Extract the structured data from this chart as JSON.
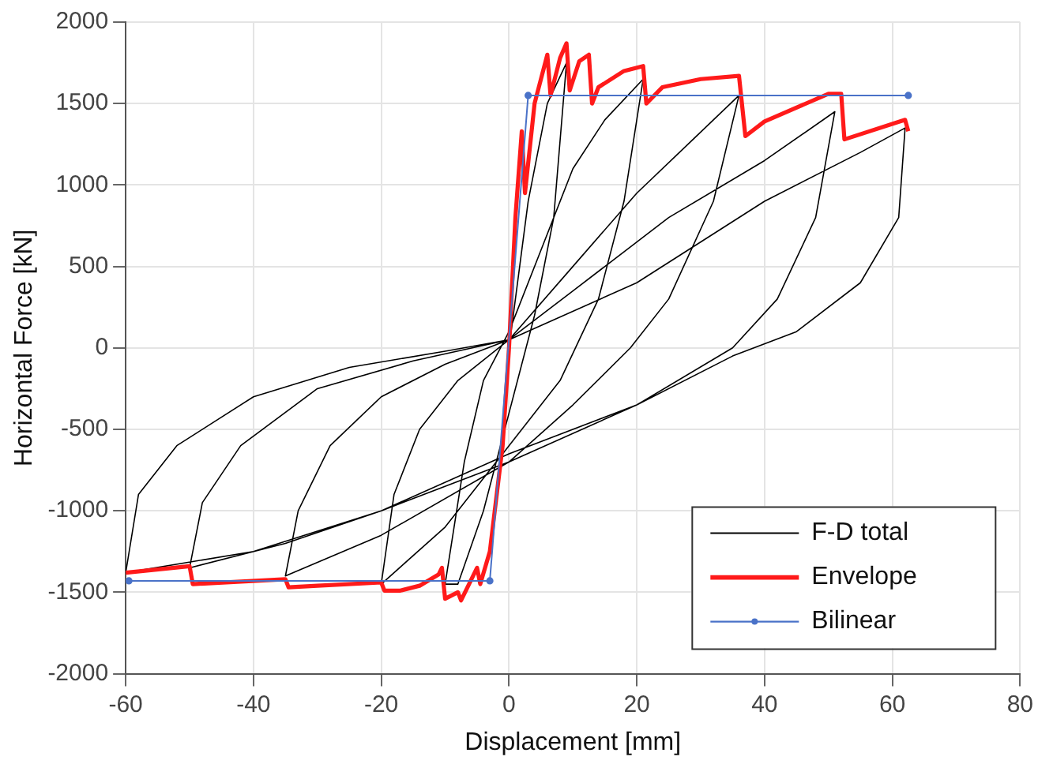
{
  "chart_data": {
    "type": "line",
    "xlabel": "Displacement [mm]",
    "ylabel": "Horizontal Force [kN]",
    "xlim": [
      -60,
      80
    ],
    "xticks": [
      -60,
      -40,
      -20,
      0,
      20,
      40,
      60,
      80
    ],
    "ylim": [
      -2000,
      2000
    ],
    "yticks": [
      -2000,
      -1500,
      -1000,
      -500,
      0,
      500,
      1000,
      1500,
      2000
    ],
    "grid": true,
    "legend": "bottom right",
    "marker": "none",
    "series": [
      {
        "name": "F-D total",
        "color": "#000000",
        "x": [
          0,
          3,
          6,
          9,
          7,
          4,
          0,
          -4,
          -8,
          -10,
          -7,
          -4,
          0,
          5,
          10,
          15,
          21,
          18,
          14,
          8,
          0,
          -10,
          -20,
          -18,
          -14,
          -8,
          0,
          10,
          20,
          28,
          36,
          32,
          25,
          19,
          10,
          0,
          -20,
          -35,
          -33,
          -28,
          -20,
          -10,
          0,
          10,
          25,
          40,
          51,
          48,
          42,
          35,
          20,
          0,
          -20,
          -35,
          -50,
          -48,
          -42,
          -30,
          -15,
          0,
          20,
          40,
          55,
          62,
          61,
          55,
          45,
          35,
          20,
          0,
          -20,
          -40,
          -60,
          -58,
          -52,
          -40,
          -25,
          -10,
          0
        ],
        "values": [
          0,
          900,
          1500,
          1750,
          800,
          200,
          -400,
          -1000,
          -1450,
          -1450,
          -700,
          -200,
          100,
          600,
          1100,
          1400,
          1650,
          900,
          300,
          -200,
          -600,
          -1100,
          -1450,
          -900,
          -500,
          -200,
          50,
          500,
          950,
          1250,
          1550,
          900,
          300,
          0,
          -350,
          -700,
          -1150,
          -1400,
          -1000,
          -600,
          -300,
          -100,
          50,
          350,
          800,
          1150,
          1450,
          800,
          300,
          0,
          -350,
          -650,
          -1000,
          -1200,
          -1350,
          -950,
          -600,
          -250,
          -80,
          50,
          400,
          900,
          1200,
          1350,
          800,
          400,
          100,
          -50,
          -350,
          -700,
          -1000,
          -1250,
          -1380,
          -900,
          -600,
          -300,
          -120,
          -20,
          50
        ]
      },
      {
        "name": "Envelope",
        "color": "#ff1a1a",
        "x": [
          -60,
          -50,
          -49.5,
          -35,
          -34.5,
          -30,
          -20,
          -19.5,
          -17,
          -14,
          -11,
          -10.5,
          -10,
          -8,
          -7.5,
          -5,
          -4.5,
          -3,
          -1,
          0,
          1,
          2,
          2.5,
          4,
          6,
          6.5,
          8,
          9,
          9.5,
          11,
          12.5,
          13,
          14,
          18,
          21,
          21.5,
          24,
          30,
          36,
          37,
          40,
          50,
          52,
          52.5,
          62,
          62.5
        ],
        "values": [
          -1380,
          -1340,
          -1450,
          -1420,
          -1470,
          -1460,
          -1440,
          -1490,
          -1490,
          -1460,
          -1390,
          -1350,
          -1540,
          -1500,
          -1550,
          -1350,
          -1450,
          -1250,
          -600,
          0,
          800,
          1330,
          950,
          1500,
          1800,
          1550,
          1780,
          1870,
          1580,
          1760,
          1800,
          1500,
          1600,
          1700,
          1730,
          1500,
          1600,
          1650,
          1670,
          1300,
          1390,
          1560,
          1560,
          1280,
          1400,
          1330
        ]
      },
      {
        "name": "Bilinear",
        "color": "#4a72c8",
        "marker": "circle",
        "x": [
          -59.5,
          -3,
          3,
          62.5
        ],
        "values": [
          -1430,
          -1430,
          1550,
          1550
        ]
      }
    ]
  }
}
